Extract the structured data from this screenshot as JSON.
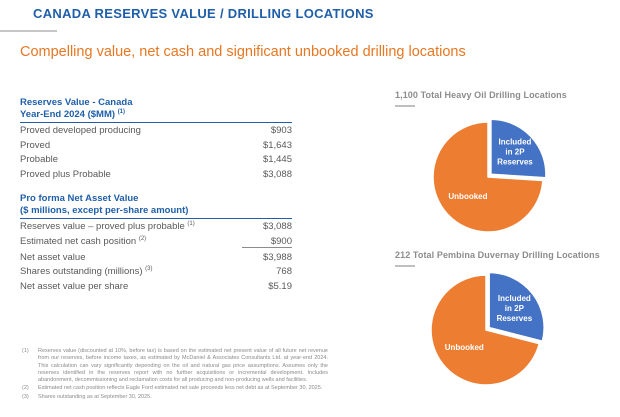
{
  "slide": {
    "title": "CANADA RESERVES VALUE / DRILLING LOCATIONS",
    "subtitle": "Compelling value, net cash and significant unbooked drilling locations"
  },
  "colors": {
    "title_blue": "#1F5FA9",
    "subtitle_orange": "#E87722",
    "pie_orange": "#ED7D31",
    "pie_blue": "#4472C4",
    "body_gray": "#595959",
    "muted_gray": "#8C8C8C"
  },
  "tables": {
    "reserves": {
      "header_line1": "Reserves Value - Canada",
      "header_line2": "Year-End 2024 ($MM)",
      "header_note": "(1)",
      "rows": [
        {
          "label": "Proved developed producing",
          "note": "",
          "value": "$903"
        },
        {
          "label": "Proved",
          "note": "",
          "value": "$1,643"
        },
        {
          "label": "Probable",
          "note": "",
          "value": "$1,445"
        },
        {
          "label": "Proved plus Probable",
          "note": "",
          "value": "$3,088"
        }
      ]
    },
    "nav": {
      "header_line1": "Pro forma Net Asset Value",
      "header_line2": "($ millions, except per-share amount)",
      "rows": [
        {
          "label": "Reserves value – proved plus probable",
          "note": "(1)",
          "value": "$3,088"
        },
        {
          "label": "Estimated net cash position",
          "note": "(2)",
          "value": "$900"
        },
        {
          "label": "Net asset value",
          "note": "",
          "value": "$3,988"
        },
        {
          "label": "Shares outstanding (millions)",
          "note": "(3)",
          "value": "768"
        },
        {
          "label": "Net asset value per share",
          "note": "",
          "value": "$5.19"
        }
      ]
    }
  },
  "chart_data": [
    {
      "type": "pie",
      "title": "1,100 Total Heavy Oil Drilling Locations",
      "total_locations": "1,100",
      "legend_position": "none",
      "slices": [
        {
          "name": "Included in 2P Reserves",
          "label_lines": [
            "Included",
            "in 2P",
            "Reserves"
          ],
          "approx_percent": 26,
          "color": "#4472C4",
          "exploded": true,
          "label_radius_frac": 0.6
        },
        {
          "name": "Unbooked",
          "label_lines": [
            "Unbooked"
          ],
          "approx_percent": 74,
          "color": "#ED7D31",
          "exploded": false,
          "label_radius_frac": 0.5
        }
      ]
    },
    {
      "type": "pie",
      "title": "212 Total Pembina Duvernay Drilling Locations",
      "total_locations": "212",
      "legend_position": "none",
      "slices": [
        {
          "name": "Included in 2P Reserves",
          "label_lines": [
            "Included",
            "in 2P",
            "Reserves"
          ],
          "approx_percent": 29,
          "color": "#4472C4",
          "exploded": true,
          "label_radius_frac": 0.58
        },
        {
          "name": "Unbooked",
          "label_lines": [
            "Unbooked"
          ],
          "approx_percent": 71,
          "color": "#ED7D31",
          "exploded": false,
          "label_radius_frac": 0.5
        }
      ]
    }
  ],
  "footnotes": [
    {
      "num": "(1)",
      "text": "Reserves value (discounted at 10%, before tax) is based on the estimated net present value of all future net revenue from our reserves, before income taxes, as estimated by McDaniel & Associates Consultants Ltd. at year-end 2024. This calculation can vary significantly depending on the oil and natural gas price assumptions. Assumes only the reserves identified in the reserves report with no further acquisitions or incremental development. Includes abandonment, decommissioning and reclamation costs for all producing and non-producing wells and facilities."
    },
    {
      "num": "(2)",
      "text": "Estimated net cash position reflects Eagle Ford estimated net sale proceeds less net debt as at September 30, 2025."
    },
    {
      "num": "(3)",
      "text": "Shares outstanding as at September 30, 2025."
    }
  ]
}
